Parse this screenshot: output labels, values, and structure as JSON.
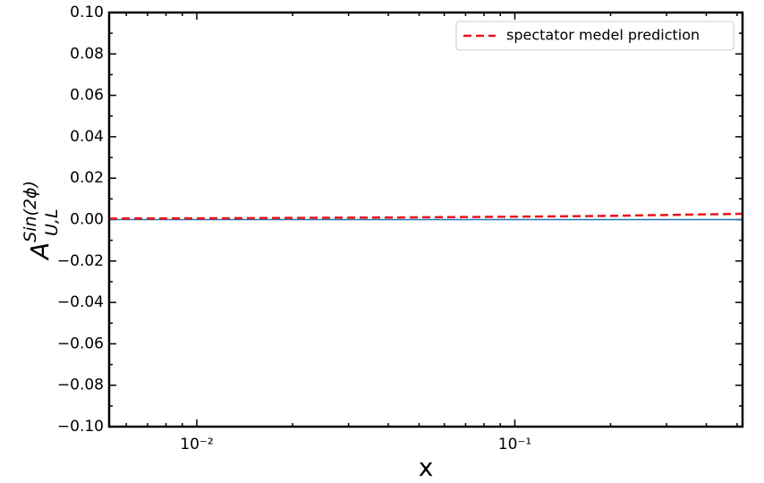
{
  "chart_data": {
    "type": "line",
    "xlabel": "x",
    "ylabel": {
      "base": "A",
      "sup": "Sin(2ϕ)",
      "sub": "U,L"
    },
    "xscale": "log",
    "xlim": [
      0.0053,
      0.52
    ],
    "xticks": [
      {
        "value": 0.01,
        "label": "10⁻²"
      },
      {
        "value": 0.1,
        "label": "10⁻¹"
      }
    ],
    "ylim": [
      -0.1,
      0.1
    ],
    "yticks": [
      {
        "value": -0.1,
        "label": "−0.10"
      },
      {
        "value": -0.08,
        "label": "−0.08"
      },
      {
        "value": -0.06,
        "label": "−0.06"
      },
      {
        "value": -0.04,
        "label": "−0.04"
      },
      {
        "value": -0.02,
        "label": "−0.02"
      },
      {
        "value": 0,
        "label": "0.00"
      },
      {
        "value": 0.02,
        "label": "0.02"
      },
      {
        "value": 0.04,
        "label": "0.04"
      },
      {
        "value": 0.06,
        "label": "0.06"
      },
      {
        "value": 0.08,
        "label": "0.08"
      },
      {
        "value": 0.1,
        "label": "0.10"
      }
    ],
    "hline": {
      "y": 0,
      "color": "#1f77b4"
    },
    "legend": "upper right",
    "x": [
      0.0053,
      0.01,
      0.02,
      0.05,
      0.1,
      0.2,
      0.52
    ],
    "series": [
      {
        "name": "spectator medel prediction",
        "color": "#e8141b",
        "dash": true,
        "values": [
          0.0005,
          0.0006,
          0.0008,
          0.0011,
          0.0014,
          0.0018,
          0.0028
        ]
      }
    ]
  }
}
